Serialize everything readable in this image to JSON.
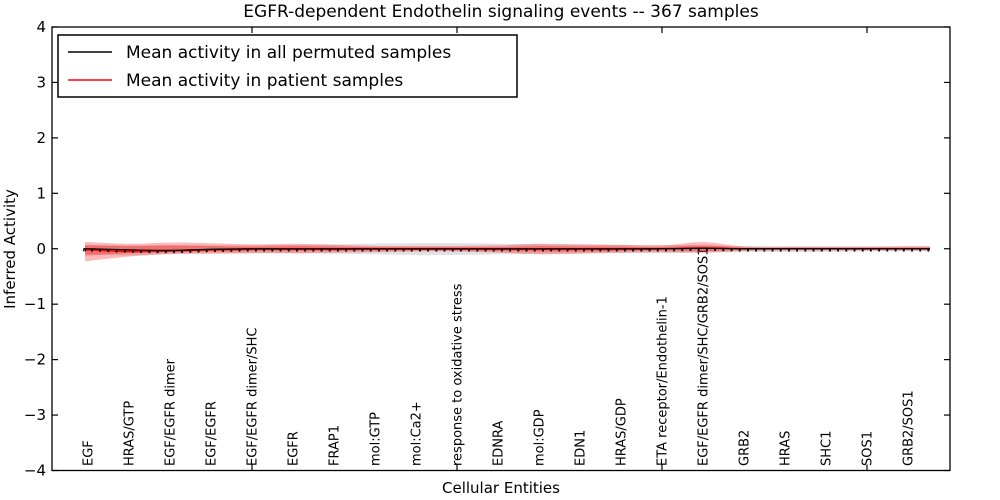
{
  "chart_data": {
    "type": "line",
    "title": "EGFR-dependent Endothelin signaling events -- 367 samples",
    "xlabel": "Cellular Entities",
    "ylabel": "Inferred Activity",
    "ylim": [
      -4,
      4
    ],
    "yticks": [
      4,
      3,
      2,
      1,
      0,
      -1,
      -2,
      -3,
      -4
    ],
    "xtick_entity_numbers": [
      5,
      10,
      15,
      20
    ],
    "grid": false,
    "legend_position": "upper left",
    "categories": [
      "EGF",
      "HRAS/GTP",
      "EGF/EGFR dimer",
      "EGF/EGFR",
      "EGF/EGFR dimer/SHC",
      "EGFR",
      "FRAP1",
      "mol:GTP",
      "mol:Ca2+",
      "response to oxidative stress",
      "EDNRA",
      "mol:GDP",
      "EDN1",
      "HRAS/GDP",
      "ETA receptor/Endothelin-1",
      "EGF/EGFR dimer/SHC/GRB2/SOS1",
      "GRB2",
      "HRAS",
      "SHC1",
      "SOS1",
      "GRB2/SOS1"
    ],
    "series": [
      {
        "name": "Mean activity in all permuted samples",
        "color": "#000000",
        "style": "solid-with-dot-markers",
        "values": [
          0,
          -0.02,
          -0.03,
          -0.01,
          0,
          0,
          0,
          0,
          0,
          0,
          0,
          0,
          0,
          0,
          0,
          0.01,
          0,
          0,
          0,
          0,
          0
        ]
      },
      {
        "name": "Mean activity in patient samples",
        "color": "#ff0000",
        "style": "solid",
        "values": [
          -0.02,
          -0.05,
          -0.04,
          -0.02,
          -0.01,
          -0.01,
          -0.01,
          -0.01,
          -0.01,
          -0.01,
          -0.01,
          -0.01,
          -0.01,
          -0.01,
          0,
          0.01,
          0,
          0,
          0,
          0,
          0
        ]
      }
    ],
    "bands": [
      {
        "name": "permuted samples range",
        "color": "#999999",
        "opacity": 0.3,
        "upper": [
          0.07,
          0.06,
          0.06,
          0.06,
          0.06,
          0.07,
          0.08,
          0.09,
          0.1,
          0.1,
          0.09,
          0.08,
          0.07,
          0.07,
          0.07,
          0.06,
          0.05,
          0.05,
          0.05,
          0.05,
          0.05
        ],
        "lower": [
          -0.1,
          -0.12,
          -0.09,
          -0.08,
          -0.08,
          -0.08,
          -0.09,
          -0.1,
          -0.11,
          -0.11,
          -0.1,
          -0.09,
          -0.08,
          -0.08,
          -0.08,
          -0.07,
          -0.06,
          -0.06,
          -0.06,
          -0.05,
          -0.05
        ]
      },
      {
        "name": "patient samples outer band",
        "color": "#ff0000",
        "opacity": 0.28,
        "upper": [
          0.12,
          0.09,
          0.11,
          0.1,
          0.08,
          0.09,
          0.07,
          0.05,
          0.05,
          0.05,
          0.06,
          0.09,
          0.08,
          0.07,
          0.06,
          0.12,
          0.04,
          0.03,
          0.03,
          0.03,
          0.04
        ],
        "lower": [
          -0.22,
          -0.14,
          -0.1,
          -0.09,
          -0.08,
          -0.08,
          -0.07,
          -0.06,
          -0.05,
          -0.05,
          -0.07,
          -0.1,
          -0.09,
          -0.07,
          -0.06,
          -0.07,
          -0.04,
          -0.03,
          -0.03,
          -0.03,
          -0.03
        ]
      },
      {
        "name": "patient samples inner band",
        "color": "#ff0000",
        "opacity": 0.3,
        "upper": [
          0.06,
          0.05,
          0.06,
          0.05,
          0.04,
          0.05,
          0.04,
          0.03,
          0.03,
          0.03,
          0.03,
          0.05,
          0.04,
          0.04,
          0.03,
          0.06,
          0.02,
          0.02,
          0.02,
          0.02,
          0.02
        ],
        "lower": [
          -0.12,
          -0.08,
          -0.06,
          -0.05,
          -0.04,
          -0.04,
          -0.04,
          -0.03,
          -0.03,
          -0.03,
          -0.04,
          -0.05,
          -0.05,
          -0.04,
          -0.03,
          -0.04,
          -0.02,
          -0.02,
          -0.02,
          -0.02,
          -0.02
        ]
      }
    ]
  }
}
